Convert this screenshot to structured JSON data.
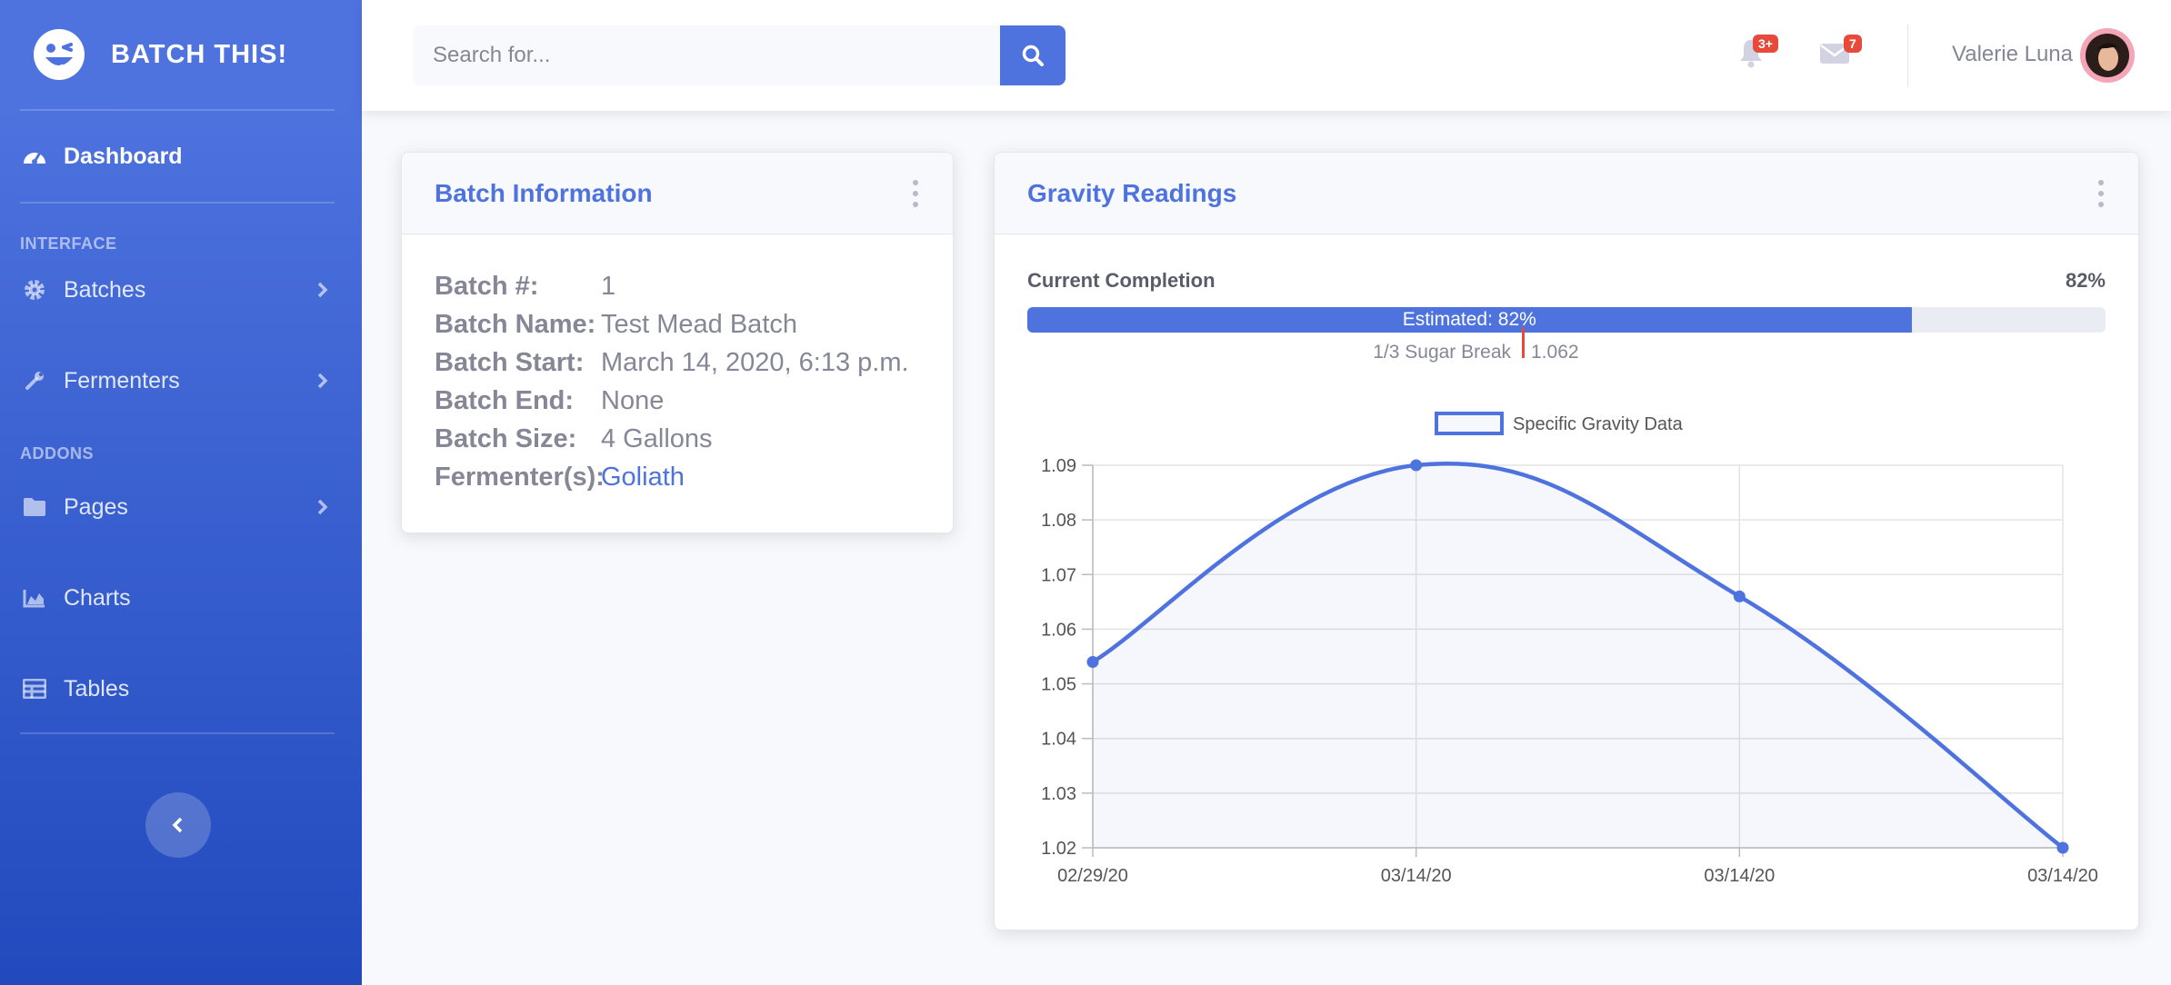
{
  "brand": {
    "name": "BATCH THIS!"
  },
  "sidebar": {
    "dashboard": "Dashboard",
    "heading_interface": "Interface",
    "batches": "Batches",
    "fermenters": "Fermenters",
    "heading_addons": "Addons",
    "pages": "Pages",
    "charts": "Charts",
    "tables": "Tables"
  },
  "topbar": {
    "search_placeholder": "Search for...",
    "alerts_badge": "3+",
    "messages_badge": "7",
    "user_name": "Valerie Luna"
  },
  "batch_card": {
    "title": "Batch Information",
    "rows": [
      {
        "key": "Batch #:",
        "value": "1"
      },
      {
        "key": "Batch Name:",
        "value": "Test Mead Batch"
      },
      {
        "key": "Batch Start:",
        "value": "March 14, 2020, 6:13 p.m."
      },
      {
        "key": "Batch End:",
        "value": "None"
      },
      {
        "key": "Batch Size:",
        "value": "4 Gallons"
      },
      {
        "key": "Fermenter(s):",
        "value": "Goliath"
      }
    ]
  },
  "gravity_card": {
    "title": "Gravity Readings",
    "completion_label": "Current Completion",
    "completion_pct": "82%",
    "completion_value": 0.82,
    "bar_label": "Estimated: 82%",
    "marker_left": "1/3 Sugar Break",
    "marker_right": "1.062"
  },
  "colors": {
    "primary": "#4e73df",
    "danger": "#e74a3b"
  },
  "chart_data": {
    "type": "line",
    "x": [
      "02/29/20",
      "03/14/20",
      "03/14/20",
      "03/14/20"
    ],
    "series": [
      {
        "name": "Specific Gravity Data",
        "values": [
          1.054,
          1.09,
          1.066,
          1.02
        ]
      }
    ],
    "yticks": [
      "1.09",
      "1.08",
      "1.07",
      "1.06",
      "1.05",
      "1.04",
      "1.03",
      "1.02"
    ],
    "ylim": [
      1.02,
      1.09
    ],
    "grid": true,
    "legend": "top"
  }
}
